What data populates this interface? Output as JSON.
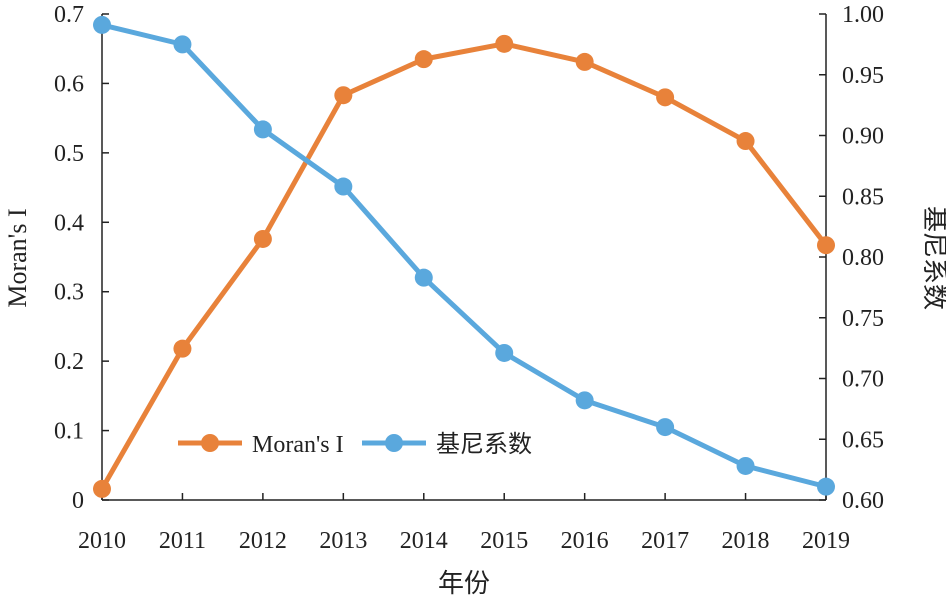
{
  "chart_data": {
    "type": "line",
    "title": "",
    "xlabel": "年份",
    "ylabel": "Moran's I",
    "y2label": "基尼系数",
    "x": [
      "2010",
      "2011",
      "2012",
      "2013",
      "2014",
      "2015",
      "2016",
      "2017",
      "2018",
      "2019"
    ],
    "ylim": [
      0,
      0.7
    ],
    "y2lim": [
      0.6,
      1.0
    ],
    "yticks": [
      "0",
      "0.1",
      "0.2",
      "0.3",
      "0.4",
      "0.5",
      "0.6",
      "0.7"
    ],
    "y2ticks": [
      "0.60",
      "0.65",
      "0.70",
      "0.75",
      "0.80",
      "0.85",
      "0.90",
      "0.95",
      "1.00"
    ],
    "grid": false,
    "legend_placement": "bottom-left",
    "series": [
      {
        "name": "Moran's I",
        "axis": "left",
        "color": "#E8823A",
        "values": [
          0.016,
          0.218,
          0.376,
          0.583,
          0.635,
          0.657,
          0.631,
          0.58,
          0.517,
          0.367
        ]
      },
      {
        "name": "基尼系数",
        "axis": "right",
        "color": "#5AA8DD",
        "values": [
          0.991,
          0.975,
          0.905,
          0.858,
          0.783,
          0.721,
          0.682,
          0.66,
          0.628,
          0.611
        ]
      }
    ]
  }
}
